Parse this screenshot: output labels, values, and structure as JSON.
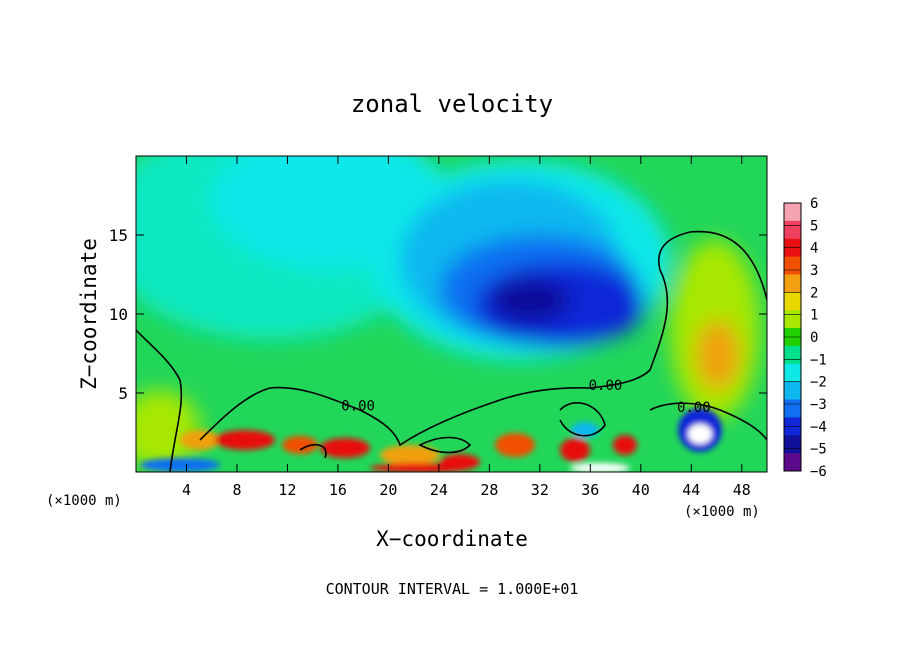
{
  "chart_data": {
    "type": "heatmap",
    "title": "zonal velocity",
    "xlabel": "X−coordinate",
    "ylabel": "Z−coordinate",
    "x_unit_left": "(×1000 m)",
    "x_unit_right": "(×1000 m)",
    "xlim": [
      0,
      50
    ],
    "ylim": [
      0,
      20
    ],
    "x_ticks": [
      4,
      8,
      12,
      16,
      20,
      24,
      28,
      32,
      36,
      40,
      44,
      48
    ],
    "y_ticks": [
      5,
      10,
      15
    ],
    "colorbar": {
      "min": -6,
      "max": 6,
      "ticks": [
        "6",
        "5",
        "4",
        "3",
        "2",
        "1",
        "0",
        "−1",
        "−2",
        "−3",
        "−4",
        "−5",
        "−6"
      ],
      "colors": [
        "#f5a3b0",
        "#f04060",
        "#e81010",
        "#f05000",
        "#f0a010",
        "#e8d800",
        "#a8e800",
        "#20d000",
        "#00e08a",
        "#10e8e8",
        "#10b8f0",
        "#1070f0",
        "#1028d8",
        "#10109a",
        "#5a0a8a"
      ]
    },
    "contour_labels": [
      {
        "text": "0.00",
        "x": 17.6,
        "y": 4.2
      },
      {
        "text": "0.00",
        "x": 37.2,
        "y": 5.5
      },
      {
        "text": "0.00",
        "x": 44.2,
        "y": 4.1
      }
    ],
    "features": [
      {
        "description": "core of negative (easterly) velocity",
        "x": 31,
        "z": 11,
        "value": -5.5
      },
      {
        "description": "positive velocity maximum",
        "x": 45,
        "z": 7.5,
        "value": 3
      }
    ],
    "footer": "CONTOUR INTERVAL = 1.000E+01"
  }
}
